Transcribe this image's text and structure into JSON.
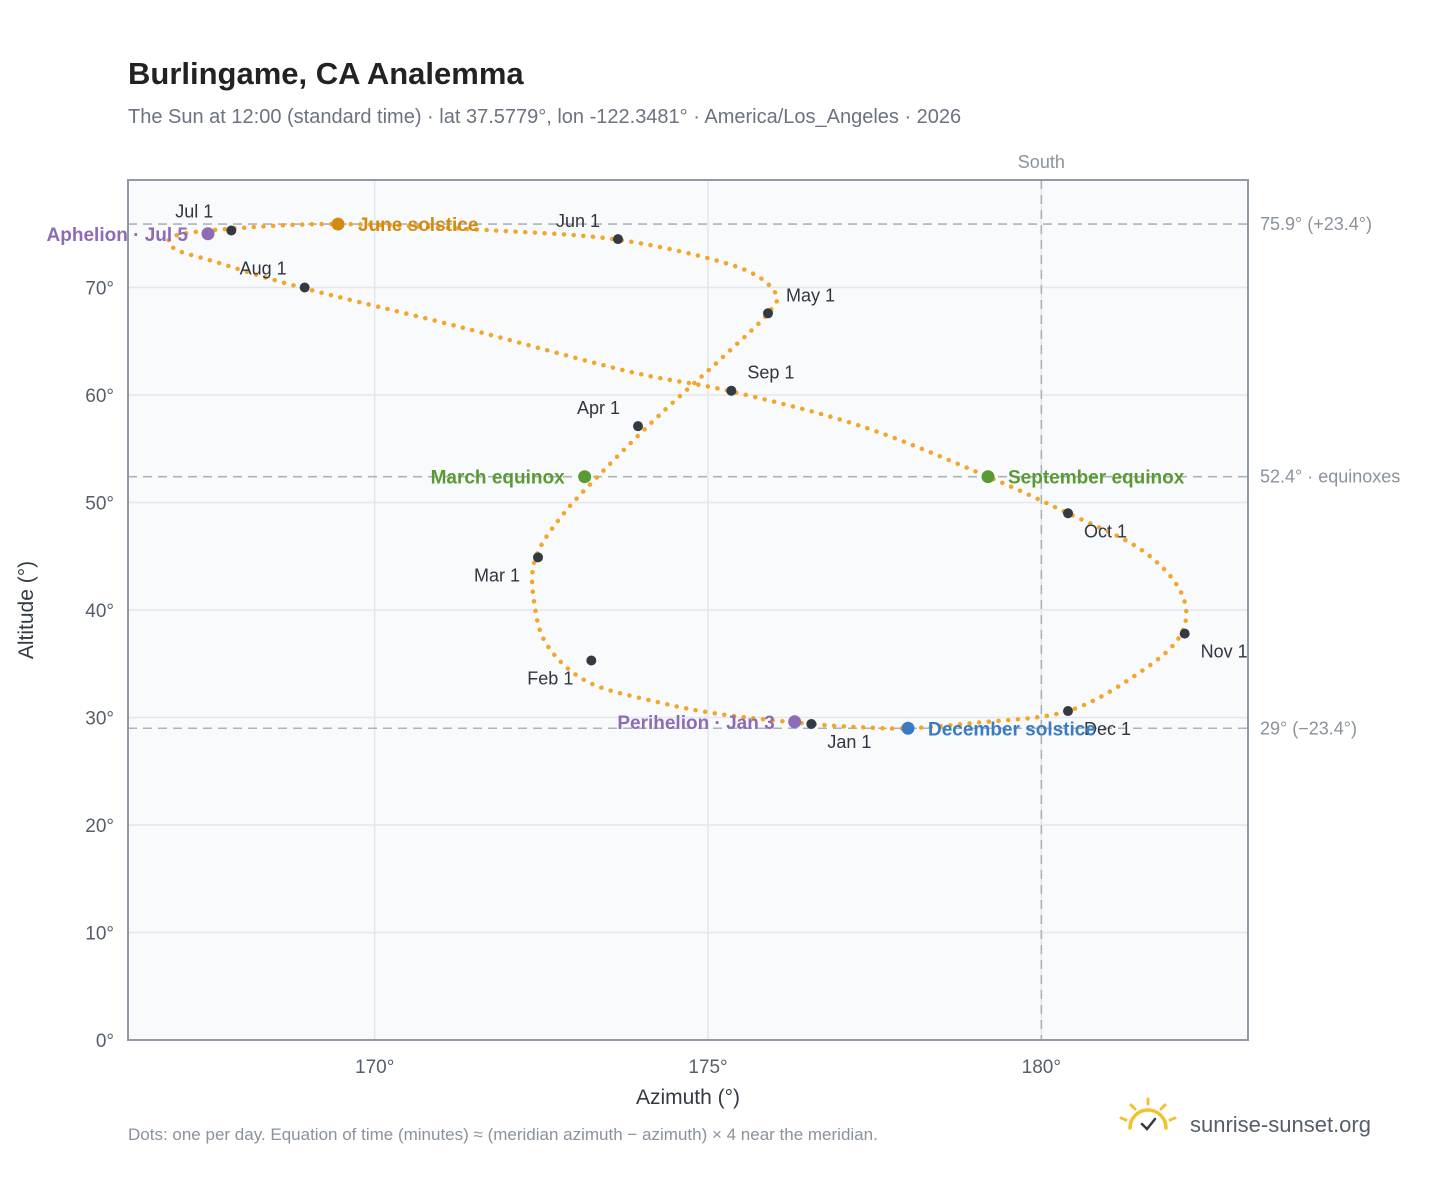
{
  "title": "Burlingame, CA Analemma",
  "subtitle": "The Sun at 12:00 (standard time) · lat 37.5779°, lon -122.3481° · America/Los_Angeles · 2026",
  "footnote": "Dots: one per day. Equation of time (minutes) ≈ (meridian azimuth − azimuth) × 4 near the meridian.",
  "brand": "sunrise-sunset.org",
  "colors": {
    "path": "#f2a62b",
    "month_marker": "#333a44",
    "solstice_june": "#d18a12",
    "solstice_december": "#3b7cc0",
    "equinox": "#5a9a35",
    "apsis": "#8e6bb5",
    "reference_line": "#aab4bd",
    "grid": "#e3e8ee",
    "plot_background": "#f8fafc",
    "frame": "#8e9aa8",
    "logo": "#f2c12e"
  },
  "chart_data": {
    "type": "scatter",
    "xlabel": "Azimuth (°)",
    "ylabel": "Altitude (°)",
    "xlim": [
      166.3,
      183.1
    ],
    "ylim": [
      0,
      80
    ],
    "x_ticks": [
      170,
      175,
      180
    ],
    "x_tick_labels": [
      "170°",
      "175°",
      "180°"
    ],
    "y_ticks": [
      0,
      10,
      20,
      30,
      40,
      50,
      60,
      70
    ],
    "y_tick_labels": [
      "0°",
      "10°",
      "20°",
      "30°",
      "40°",
      "50°",
      "60°",
      "70°"
    ],
    "grid": true,
    "south": {
      "azimuth": 180,
      "label": "South"
    },
    "reference_lines": [
      {
        "altitude": 75.9,
        "label": "75.9° (+23.4°)"
      },
      {
        "altitude": 52.4,
        "label": "52.4° · equinoxes"
      },
      {
        "altitude": 29.0,
        "label": "29° (−23.4°)"
      }
    ],
    "path_points": [
      [
        176.55,
        29.4
      ],
      [
        175.2,
        30.3
      ],
      [
        174.2,
        31.5
      ],
      [
        173.2,
        33.3
      ],
      [
        172.6,
        36.6
      ],
      [
        172.4,
        40.4
      ],
      [
        172.4,
        44.6
      ],
      [
        172.8,
        48.7
      ],
      [
        173.5,
        53.4
      ],
      [
        174.3,
        58.3
      ],
      [
        175.2,
        63.4
      ],
      [
        175.9,
        67.6
      ],
      [
        176.0,
        69.6
      ],
      [
        175.4,
        72.0
      ],
      [
        173.7,
        74.4
      ],
      [
        171.8,
        75.3
      ],
      [
        169.5,
        75.9
      ],
      [
        167.9,
        75.5
      ],
      [
        167.0,
        74.8
      ],
      [
        167.0,
        73.6
      ],
      [
        167.6,
        72.4
      ],
      [
        168.9,
        70.0
      ],
      [
        171.3,
        66.3
      ],
      [
        173.8,
        62.2
      ],
      [
        175.3,
        60.4
      ],
      [
        177.3,
        57.1
      ],
      [
        179.2,
        52.4
      ],
      [
        180.4,
        49.0
      ],
      [
        181.5,
        45.6
      ],
      [
        182.1,
        41.6
      ],
      [
        182.1,
        37.8
      ],
      [
        181.5,
        34.3
      ],
      [
        180.4,
        30.6
      ],
      [
        179.0,
        29.5
      ],
      [
        178.0,
        29.0
      ],
      [
        177.3,
        29.1
      ],
      [
        176.55,
        29.4
      ]
    ],
    "months": [
      {
        "label": "Jan 1",
        "azimuth": 176.55,
        "altitude": 29.4
      },
      {
        "label": "Feb 1",
        "azimuth": 173.25,
        "altitude": 35.3
      },
      {
        "label": "Mar 1",
        "azimuth": 172.45,
        "altitude": 44.9
      },
      {
        "label": "Apr 1",
        "azimuth": 173.95,
        "altitude": 57.1
      },
      {
        "label": "May 1",
        "azimuth": 175.9,
        "altitude": 67.6
      },
      {
        "label": "Jun 1",
        "azimuth": 173.65,
        "altitude": 74.5
      },
      {
        "label": "Jul 1",
        "azimuth": 167.85,
        "altitude": 75.3
      },
      {
        "label": "Aug 1",
        "azimuth": 168.95,
        "altitude": 70.0
      },
      {
        "label": "Sep 1",
        "azimuth": 175.35,
        "altitude": 60.4
      },
      {
        "label": "Oct 1",
        "azimuth": 180.4,
        "altitude": 49.0
      },
      {
        "label": "Nov 1",
        "azimuth": 182.15,
        "altitude": 37.8
      },
      {
        "label": "Dec 1",
        "azimuth": 180.4,
        "altitude": 30.6
      }
    ],
    "events": [
      {
        "label": "June solstice",
        "azimuth": 169.45,
        "altitude": 75.9,
        "color": "#d18a12",
        "side": "right"
      },
      {
        "label": "Aphelion · Jul 5",
        "azimuth": 167.5,
        "altitude": 75.0,
        "color": "#8e6bb5",
        "side": "left"
      },
      {
        "label": "March equinox",
        "azimuth": 173.15,
        "altitude": 52.4,
        "color": "#5a9a35",
        "side": "left"
      },
      {
        "label": "September equinox",
        "azimuth": 179.2,
        "altitude": 52.4,
        "color": "#5a9a35",
        "side": "right"
      },
      {
        "label": "Perihelion · Jan 3",
        "azimuth": 176.3,
        "altitude": 29.6,
        "color": "#8e6bb5",
        "side": "left"
      },
      {
        "label": "December solstice",
        "azimuth": 178.0,
        "altitude": 29.0,
        "color": "#3b7cc0",
        "side": "right"
      }
    ]
  }
}
